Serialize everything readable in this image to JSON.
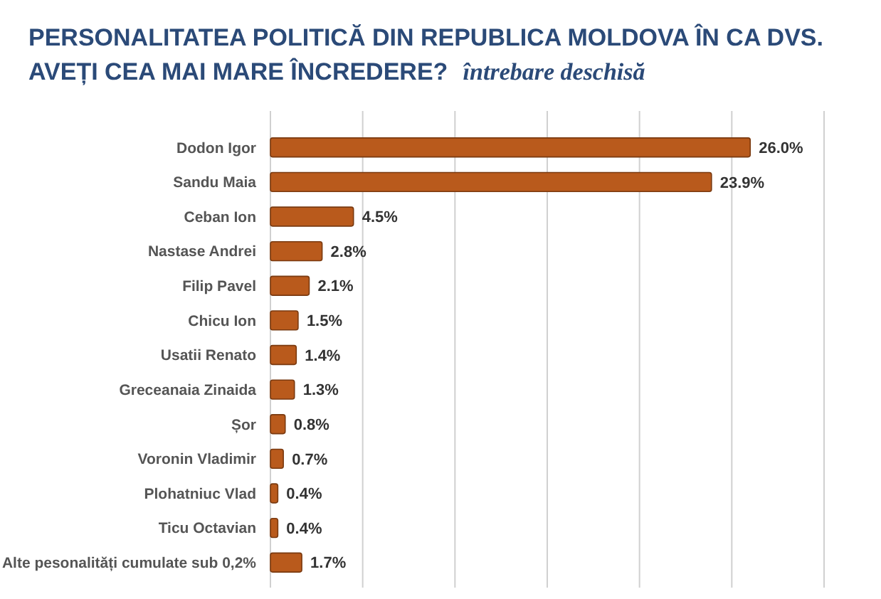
{
  "chart_data": {
    "type": "bar",
    "orientation": "horizontal",
    "title": "PERSONALITATEA POLITICĂ DIN REPUBLICA MOLDOVA ÎN CA DVS. AVEȚI CEA MAI MARE ÎNCREDERE?",
    "subtitle": "întrebare deschisă",
    "categories": [
      "Dodon Igor",
      "Sandu Maia",
      "Ceban Ion",
      "Nastase Andrei",
      "Filip Pavel",
      "Chicu Ion",
      "Usatii Renato",
      "Greceanaia Zinaida",
      "Șor",
      "Voronin Vladimir",
      "Plohatniuc Vlad",
      "Ticu Octavian",
      "Alte pesonalități cumulate sub 0,2%"
    ],
    "values": [
      26.0,
      23.9,
      4.5,
      2.8,
      2.1,
      1.5,
      1.4,
      1.3,
      0.8,
      0.7,
      0.4,
      0.4,
      1.7
    ],
    "value_labels": [
      "26.0%",
      "23.9%",
      "4.5%",
      "2.8%",
      "2.1%",
      "1.5%",
      "1.4%",
      "1.3%",
      "0.8%",
      "0.7%",
      "0.4%",
      "0.4%",
      "1.7%"
    ],
    "color": "#b95a1c",
    "xlim": [
      0,
      30
    ],
    "xticks": [
      {
        "value": 0,
        "label": null
      },
      {
        "value": 5,
        "label": null
      },
      {
        "value": 10,
        "label": null
      },
      {
        "value": 15,
        "label": null
      },
      {
        "value": 20,
        "label": null
      },
      {
        "value": 25,
        "label": null
      },
      {
        "value": 30,
        "label": null
      }
    ],
    "tick_labels": "y",
    "grid": "x"
  }
}
